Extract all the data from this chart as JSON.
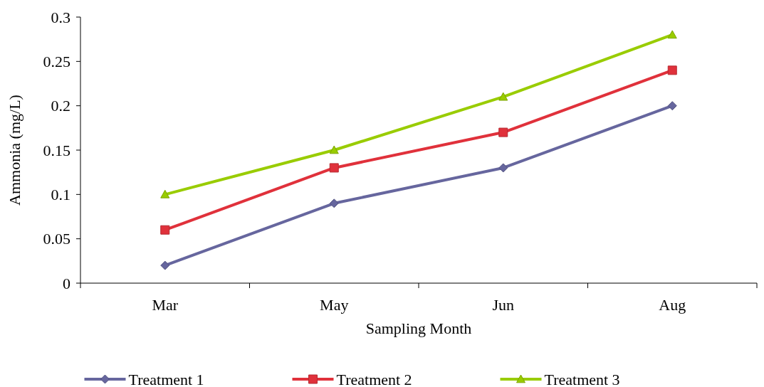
{
  "chart_data": {
    "type": "line",
    "xlabel": "Sampling Month",
    "ylabel": "Ammonia (mg/L)",
    "categories": [
      "Mar",
      "May",
      "Jun",
      "Aug"
    ],
    "series": [
      {
        "name": "Treatment 1",
        "color": "#66669e",
        "marker": "diamond",
        "values": [
          0.02,
          0.09,
          0.13,
          0.2
        ]
      },
      {
        "name": "Treatment 2",
        "color": "#e0313b",
        "marker": "square",
        "values": [
          0.06,
          0.13,
          0.17,
          0.24
        ]
      },
      {
        "name": "Treatment 3",
        "color": "#99cc00",
        "marker": "triangle",
        "values": [
          0.1,
          0.15,
          0.21,
          0.28
        ]
      }
    ],
    "ylim": [
      0,
      0.3
    ],
    "yticks": [
      0,
      0.05,
      0.1,
      0.15,
      0.2,
      0.25,
      0.3
    ],
    "grid": false,
    "legend": "bottom"
  }
}
